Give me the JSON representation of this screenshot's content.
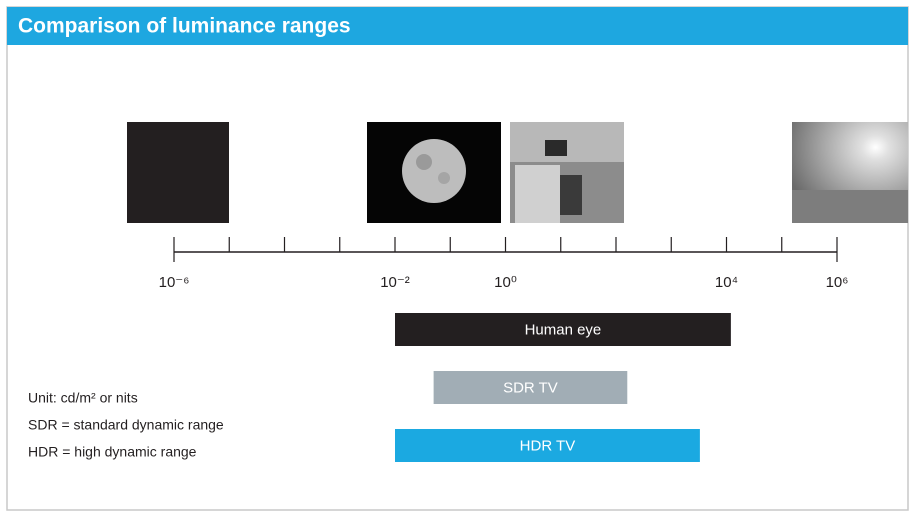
{
  "chart_data": {
    "type": "range-bar",
    "title": "Comparison of luminance ranges",
    "log_x": true,
    "xlim": [
      1e-06,
      1000000
    ],
    "xticks": [
      {
        "value": 1e-06,
        "label": "10⁻⁶"
      },
      1e-05,
      0.0001,
      0.001,
      {
        "value": 0.01,
        "label": "10⁻²"
      },
      0.1,
      {
        "value": 1,
        "label": "10⁰"
      },
      10,
      100,
      1000,
      {
        "value": 10000,
        "label": "10⁴"
      },
      100000,
      {
        "value": 1000000,
        "label": "10⁶"
      }
    ],
    "series": [
      {
        "name": "Human eye",
        "color": "#231f20",
        "values": [
          0.01,
          12000
        ]
      },
      {
        "name": "SDR TV",
        "color": "#a1adb5",
        "values": [
          0.05,
          160
        ]
      },
      {
        "name": "HDR TV",
        "color": "#1ba9e1",
        "values": [
          0.01,
          3300
        ]
      }
    ],
    "notes": [
      "Unit: cd/m² or nits",
      "SDR = standard dynamic range",
      "HDR = high dynamic range"
    ]
  }
}
